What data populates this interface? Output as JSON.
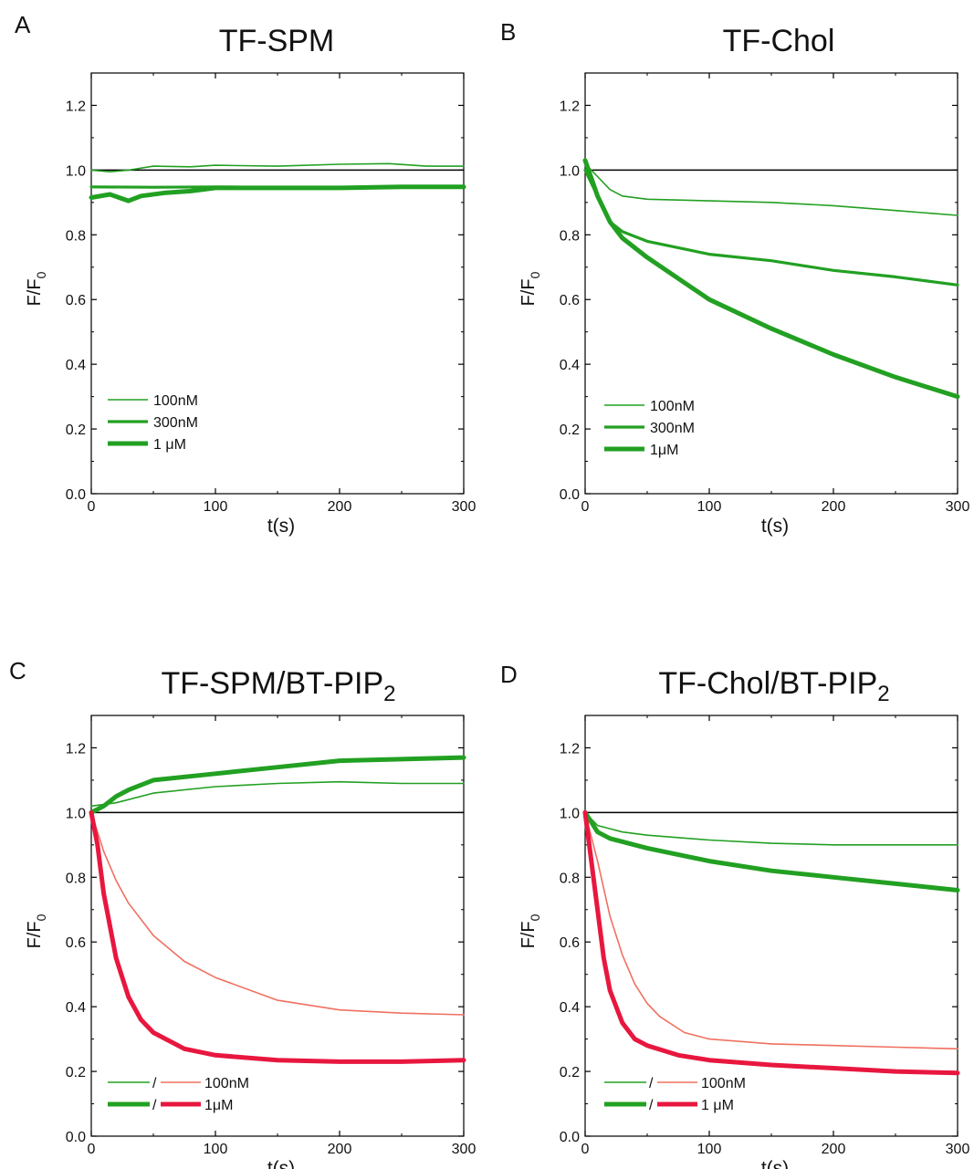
{
  "figure": {
    "panels": [
      {
        "letter": "A",
        "title": "TF-SPM",
        "title_sub": ""
      },
      {
        "letter": "B",
        "title": "TF-Chol",
        "title_sub": ""
      },
      {
        "letter": "C",
        "title": "TF-SPM/BT-PIP",
        "title_sub": "2"
      },
      {
        "letter": "D",
        "title": "TF-Chol/BT-PIP",
        "title_sub": "2"
      }
    ]
  },
  "colors": {
    "green": "#22a022",
    "red": "#e8173f",
    "light_red": "#f07060",
    "axis": "#000000"
  },
  "chart_data": [
    {
      "type": "line",
      "title": "TF-SPM",
      "xlabel": "t(s)",
      "ylabel_main": "F/F",
      "ylabel_sub": "0",
      "xlim": [
        0,
        300
      ],
      "ylim": [
        0,
        1.3
      ],
      "xticks": [
        "0",
        "100",
        "200",
        "300"
      ],
      "yticks": [
        "0.0",
        "0.2",
        "0.4",
        "0.6",
        "0.8",
        "1.0",
        "1.2"
      ],
      "reference_line": 1.0,
      "legend": {
        "placement": "bottom-left",
        "entries": [
          {
            "label": "100nM",
            "series": [
              0
            ]
          },
          {
            "label": "300nM",
            "series": [
              1
            ]
          },
          {
            "label": "1 μM",
            "series": [
              2
            ]
          }
        ]
      },
      "series": [
        {
          "color": "green",
          "weight": "thin",
          "x": [
            0,
            15,
            30,
            50,
            80,
            100,
            150,
            200,
            240,
            270,
            300
          ],
          "y": [
            1.0,
            0.995,
            1.0,
            1.012,
            1.01,
            1.015,
            1.012,
            1.018,
            1.02,
            1.012,
            1.012
          ]
        },
        {
          "color": "green",
          "weight": "medium",
          "x": [
            0,
            50,
            100,
            150,
            200,
            250,
            300
          ],
          "y": [
            0.948,
            0.947,
            0.948,
            0.946,
            0.947,
            0.947,
            0.948
          ]
        },
        {
          "color": "green",
          "weight": "thick",
          "x": [
            0,
            15,
            30,
            40,
            60,
            80,
            100,
            150,
            200,
            250,
            300
          ],
          "y": [
            0.915,
            0.925,
            0.905,
            0.92,
            0.93,
            0.935,
            0.945,
            0.945,
            0.945,
            0.948,
            0.948
          ]
        }
      ]
    },
    {
      "type": "line",
      "title": "TF-Chol",
      "xlabel": "t(s)",
      "ylabel_main": "F/F",
      "ylabel_sub": "0",
      "xlim": [
        0,
        300
      ],
      "ylim": [
        0,
        1.3
      ],
      "xticks": [
        "0",
        "100",
        "200",
        "300"
      ],
      "yticks": [
        "0.0",
        "0.2",
        "0.4",
        "0.6",
        "0.8",
        "1.0",
        "1.2"
      ],
      "reference_line": 1.0,
      "legend": {
        "placement": "bottom-left",
        "entries": [
          {
            "label": "100nM",
            "series": [
              0
            ]
          },
          {
            "label": "300nM",
            "series": [
              1
            ]
          },
          {
            "label": "1μM",
            "series": [
              2
            ]
          }
        ]
      },
      "series": [
        {
          "color": "green",
          "weight": "thin",
          "x": [
            0,
            5,
            10,
            20,
            30,
            50,
            100,
            150,
            200,
            250,
            300
          ],
          "y": [
            1.02,
            1.0,
            0.98,
            0.94,
            0.92,
            0.91,
            0.905,
            0.9,
            0.89,
            0.875,
            0.86
          ]
        },
        {
          "color": "green",
          "weight": "medium",
          "x": [
            0,
            10,
            20,
            30,
            50,
            100,
            150,
            200,
            250,
            300
          ],
          "y": [
            1.0,
            0.92,
            0.84,
            0.81,
            0.78,
            0.74,
            0.72,
            0.69,
            0.67,
            0.645
          ]
        },
        {
          "color": "green",
          "weight": "thick",
          "x": [
            0,
            10,
            20,
            30,
            50,
            100,
            150,
            200,
            250,
            300
          ],
          "y": [
            1.03,
            0.92,
            0.84,
            0.79,
            0.73,
            0.6,
            0.51,
            0.43,
            0.36,
            0.3
          ]
        }
      ]
    },
    {
      "type": "line",
      "title": "TF-SPM/BT-PIP2",
      "xlabel": "t(s)",
      "ylabel_main": "F/F",
      "ylabel_sub": "0",
      "xlim": [
        0,
        300
      ],
      "ylim": [
        0,
        1.3
      ],
      "xticks": [
        "0",
        "100",
        "200",
        "300"
      ],
      "yticks": [
        "0.0",
        "0.2",
        "0.4",
        "0.6",
        "0.8",
        "1.0",
        "1.2"
      ],
      "reference_line": 1.0,
      "legend": {
        "placement": "bottom-left",
        "entries": [
          {
            "label": "100nM",
            "series": [
              0,
              2
            ],
            "separator": "/"
          },
          {
            "label": "1μM",
            "series": [
              1,
              3
            ],
            "separator": "/"
          }
        ]
      },
      "series": [
        {
          "color": "green",
          "weight": "thin",
          "x": [
            0,
            20,
            50,
            100,
            150,
            200,
            250,
            300
          ],
          "y": [
            1.02,
            1.03,
            1.06,
            1.08,
            1.09,
            1.095,
            1.09,
            1.09
          ]
        },
        {
          "color": "green",
          "weight": "thick",
          "x": [
            0,
            10,
            20,
            30,
            50,
            100,
            150,
            200,
            250,
            300
          ],
          "y": [
            1.0,
            1.02,
            1.05,
            1.07,
            1.1,
            1.12,
            1.14,
            1.16,
            1.165,
            1.17
          ]
        },
        {
          "color": "light_red",
          "weight": "thin",
          "x": [
            0,
            10,
            20,
            30,
            50,
            75,
            100,
            150,
            200,
            250,
            300
          ],
          "y": [
            1.0,
            0.88,
            0.79,
            0.72,
            0.62,
            0.54,
            0.49,
            0.42,
            0.39,
            0.38,
            0.375
          ]
        },
        {
          "color": "red",
          "weight": "thick",
          "x": [
            0,
            5,
            10,
            20,
            30,
            40,
            50,
            75,
            100,
            150,
            200,
            250,
            300
          ],
          "y": [
            1.0,
            0.9,
            0.75,
            0.55,
            0.43,
            0.36,
            0.32,
            0.27,
            0.25,
            0.235,
            0.23,
            0.23,
            0.235
          ]
        }
      ]
    },
    {
      "type": "line",
      "title": "TF-Chol/BT-PIP2",
      "xlabel": "t(s)",
      "ylabel_main": "F/F",
      "ylabel_sub": "0",
      "xlim": [
        0,
        300
      ],
      "ylim": [
        0,
        1.3
      ],
      "xticks": [
        "0",
        "100",
        "200",
        "300"
      ],
      "yticks": [
        "0.0",
        "0.2",
        "0.4",
        "0.6",
        "0.8",
        "1.0",
        "1.2"
      ],
      "reference_line": 1.0,
      "legend": {
        "placement": "bottom-left",
        "entries": [
          {
            "label": "100nM",
            "series": [
              0,
              2
            ],
            "separator": "/"
          },
          {
            "label": "1 μM",
            "series": [
              1,
              3
            ],
            "separator": "/"
          }
        ]
      },
      "series": [
        {
          "color": "green",
          "weight": "thin",
          "x": [
            0,
            10,
            20,
            30,
            50,
            100,
            150,
            200,
            250,
            300
          ],
          "y": [
            1.0,
            0.96,
            0.95,
            0.94,
            0.93,
            0.915,
            0.905,
            0.9,
            0.9,
            0.9
          ]
        },
        {
          "color": "green",
          "weight": "thick",
          "x": [
            0,
            10,
            20,
            50,
            100,
            150,
            200,
            250,
            300
          ],
          "y": [
            1.0,
            0.94,
            0.92,
            0.89,
            0.85,
            0.82,
            0.8,
            0.78,
            0.76
          ]
        },
        {
          "color": "light_red",
          "weight": "thin",
          "x": [
            0,
            10,
            20,
            30,
            40,
            50,
            60,
            80,
            100,
            150,
            200,
            250,
            300
          ],
          "y": [
            1.0,
            0.85,
            0.68,
            0.56,
            0.47,
            0.41,
            0.37,
            0.32,
            0.3,
            0.285,
            0.28,
            0.275,
            0.27
          ]
        },
        {
          "color": "red",
          "weight": "thick",
          "x": [
            0,
            5,
            10,
            15,
            20,
            30,
            40,
            50,
            75,
            100,
            150,
            200,
            250,
            300
          ],
          "y": [
            1.0,
            0.85,
            0.7,
            0.55,
            0.45,
            0.35,
            0.3,
            0.28,
            0.25,
            0.235,
            0.22,
            0.21,
            0.2,
            0.195
          ]
        }
      ]
    }
  ]
}
